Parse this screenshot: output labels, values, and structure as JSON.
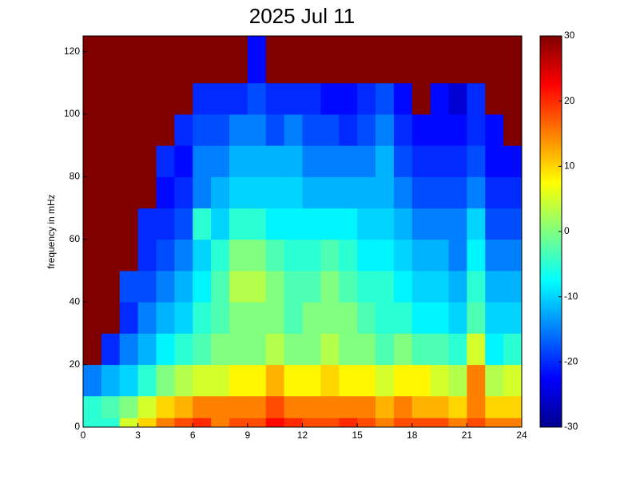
{
  "chart_data": {
    "type": "heatmap",
    "title": "2025 Jul 11",
    "y_label": "frequency in mHz",
    "x_bins": [
      0,
      1,
      2,
      3,
      4,
      5,
      6,
      7,
      8,
      9,
      10,
      11,
      12,
      13,
      14,
      15,
      16,
      17,
      18,
      19,
      20,
      21,
      22,
      23,
      24
    ],
    "y_bins": [
      0,
      3,
      10,
      20,
      30,
      40,
      50,
      60,
      70,
      80,
      90,
      100,
      110,
      125
    ],
    "values": [
      [
        -5,
        -5,
        5,
        10,
        15,
        18,
        20,
        15,
        18,
        18,
        22,
        20,
        18,
        18,
        20,
        18,
        15,
        18,
        18,
        18,
        15,
        18,
        15,
        15
      ],
      [
        -5,
        -3,
        0,
        5,
        10,
        12,
        15,
        15,
        15,
        15,
        18,
        15,
        15,
        15,
        15,
        15,
        12,
        15,
        12,
        12,
        10,
        15,
        10,
        10
      ],
      [
        -15,
        -12,
        -10,
        -5,
        0,
        3,
        5,
        5,
        8,
        8,
        12,
        8,
        8,
        10,
        8,
        8,
        5,
        8,
        8,
        5,
        3,
        15,
        3,
        5
      ],
      [
        30,
        -20,
        -15,
        -12,
        -8,
        -5,
        -3,
        0,
        0,
        0,
        3,
        0,
        0,
        3,
        0,
        0,
        -3,
        0,
        -3,
        -3,
        -5,
        5,
        -8,
        -5
      ],
      [
        30,
        30,
        -20,
        -15,
        -12,
        -10,
        -5,
        -3,
        0,
        0,
        0,
        -3,
        0,
        0,
        0,
        -3,
        -5,
        -5,
        -8,
        -8,
        -10,
        -3,
        -10,
        -10
      ],
      [
        30,
        30,
        -18,
        -18,
        -15,
        -12,
        -8,
        -3,
        3,
        3,
        0,
        -3,
        -3,
        0,
        -3,
        -5,
        -5,
        -8,
        -10,
        -10,
        -12,
        -5,
        -12,
        -12
      ],
      [
        30,
        30,
        30,
        -20,
        -18,
        -15,
        -10,
        -5,
        0,
        0,
        -3,
        -5,
        -5,
        -3,
        -5,
        -8,
        -8,
        -10,
        -12,
        -12,
        -15,
        -8,
        -15,
        -15
      ],
      [
        30,
        30,
        30,
        -20,
        -20,
        -18,
        -5,
        -10,
        -5,
        -5,
        -8,
        -8,
        -8,
        -8,
        -8,
        -10,
        -10,
        -12,
        -15,
        -15,
        -15,
        -10,
        -18,
        -18
      ],
      [
        30,
        30,
        30,
        30,
        -22,
        -20,
        -15,
        -12,
        -10,
        -10,
        -10,
        -10,
        -12,
        -12,
        -12,
        -12,
        -12,
        -15,
        -18,
        -18,
        -18,
        -15,
        -20,
        -20
      ],
      [
        30,
        30,
        30,
        30,
        -20,
        -22,
        -15,
        -15,
        -12,
        -12,
        -12,
        -12,
        -15,
        -15,
        -15,
        -15,
        -12,
        -18,
        -20,
        -20,
        -20,
        -18,
        -22,
        -22
      ],
      [
        30,
        30,
        30,
        30,
        30,
        -20,
        -18,
        -18,
        -15,
        -15,
        -18,
        -15,
        -18,
        -18,
        -20,
        -18,
        -15,
        -20,
        -22,
        -22,
        -22,
        -20,
        -22,
        30
      ],
      [
        30,
        30,
        30,
        30,
        30,
        30,
        -20,
        -20,
        -20,
        -18,
        -20,
        -20,
        -20,
        -22,
        -22,
        -20,
        -18,
        -22,
        30,
        -22,
        -25,
        -20,
        30,
        30
      ],
      [
        30,
        30,
        30,
        30,
        30,
        30,
        30,
        30,
        30,
        -22,
        30,
        30,
        30,
        30,
        30,
        30,
        30,
        30,
        30,
        30,
        30,
        30,
        30,
        30
      ]
    ],
    "xlim": [
      0,
      24
    ],
    "xticks": [
      0,
      3,
      6,
      9,
      12,
      15,
      18,
      21,
      24
    ],
    "ylim": [
      0,
      125
    ],
    "yticks": [
      0,
      20,
      40,
      60,
      80,
      100,
      120
    ],
    "clim": [
      -30,
      30
    ],
    "cticks": [
      -30,
      -20,
      -10,
      0,
      10,
      20,
      30
    ],
    "colormap": "jet"
  }
}
